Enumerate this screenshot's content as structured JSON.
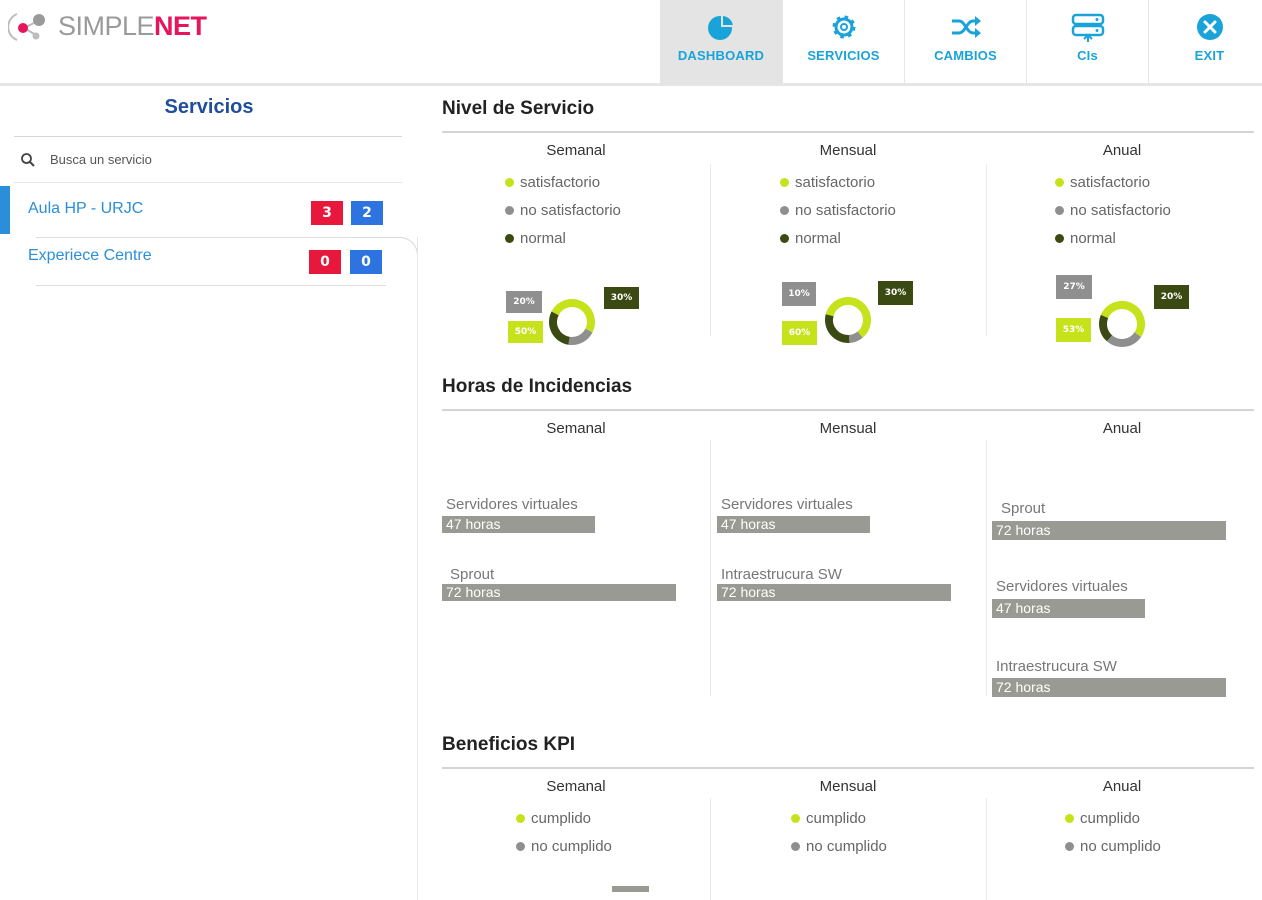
{
  "brand": {
    "simple": "SIMPLE",
    "net": "NET"
  },
  "nav": [
    {
      "label": "DASHBOARD",
      "icon": "pie-chart-icon",
      "active": true
    },
    {
      "label": "SERVICIOS",
      "icon": "gear-icon",
      "active": false
    },
    {
      "label": "CAMBIOS",
      "icon": "shuffle-icon",
      "active": false
    },
    {
      "label": "CIs",
      "icon": "server-icon",
      "active": false
    },
    {
      "label": "EXIT",
      "icon": "close-circle-icon",
      "active": false
    }
  ],
  "sidebar": {
    "title": "Servicios",
    "search_placeholder": "Busca un servicio",
    "items": [
      {
        "name": "Aula HP - URJC",
        "red_count": "3",
        "blue_count": "2",
        "selected": true
      },
      {
        "name": "Experiece Centre",
        "red_count": "0",
        "blue_count": "0",
        "selected": false
      }
    ]
  },
  "colors": {
    "accent": "#1aa3d9",
    "brand_pink": "#e5165b",
    "satisfactorio": "#c5e21a",
    "no_satisfactorio": "#8f8f8f",
    "normal": "#3b4a12",
    "badge_red": "#e8173c",
    "badge_blue": "#2e74e0"
  },
  "nivel_servicio": {
    "title": "Nivel de Servicio",
    "legend": [
      "satisfactorio",
      "no satisfactorio",
      "normal"
    ],
    "periods": [
      {
        "label": "Semanal",
        "satisfactorio": 50,
        "no_satisfactorio": 20,
        "normal": 30,
        "labels": {
          "satisfactorio": "50%",
          "no_satisfactorio": "20%",
          "normal": "30%"
        }
      },
      {
        "label": "Mensual",
        "satisfactorio": 60,
        "no_satisfactorio": 10,
        "normal": 30,
        "labels": {
          "satisfactorio": "60%",
          "no_satisfactorio": "10%",
          "normal": "30%"
        }
      },
      {
        "label": "Anual",
        "satisfactorio": 53,
        "no_satisfactorio": 27,
        "normal": 20,
        "labels": {
          "satisfactorio": "53%",
          "no_satisfactorio": "27%",
          "normal": "20%"
        }
      }
    ]
  },
  "horas_incidencias": {
    "title": "Horas de Incidencias",
    "periods": [
      {
        "label": "Semanal",
        "bars": [
          {
            "name": "Servidores virtuales",
            "value": 47,
            "text": "47  horas"
          },
          {
            "name": "Sprout",
            "value": 72,
            "text": "72  horas"
          }
        ]
      },
      {
        "label": "Mensual",
        "bars": [
          {
            "name": "Servidores virtuales",
            "value": 47,
            "text": "47  horas"
          },
          {
            "name": "Intraestrucura SW",
            "value": 72,
            "text": "72  horas"
          }
        ]
      },
      {
        "label": "Anual",
        "bars": [
          {
            "name": "Sprout",
            "value": 72,
            "text": "72  horas"
          },
          {
            "name": "Servidores virtuales",
            "value": 47,
            "text": "47  horas"
          },
          {
            "name": "Intraestrucura SW",
            "value": 72,
            "text": "72  horas"
          }
        ]
      }
    ]
  },
  "beneficios_kpi": {
    "title": "Beneficios KPI",
    "legend": [
      "cumplido",
      "no cumplido"
    ],
    "periods": [
      {
        "label": "Semanal"
      },
      {
        "label": "Mensual"
      },
      {
        "label": "Anual"
      }
    ]
  }
}
